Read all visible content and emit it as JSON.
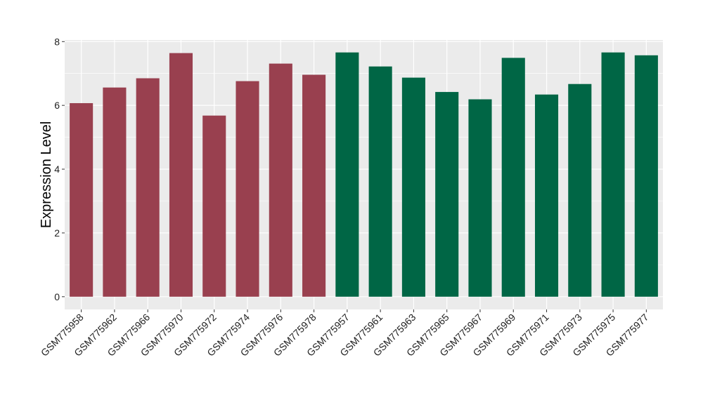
{
  "chart_data": {
    "type": "bar",
    "ylabel": "Expression Level",
    "xlabel": "",
    "ylim": [
      -0.4,
      8.05
    ],
    "yticks": [
      0,
      2,
      4,
      6,
      8
    ],
    "grid": true,
    "legend": "none",
    "panel_background": "#EBEBEB",
    "grid_color": "#FFFFFF",
    "categories": [
      "GSM775958",
      "GSM775962",
      "GSM775966",
      "GSM775970",
      "GSM775972",
      "GSM775974",
      "GSM775976",
      "GSM775978",
      "GSM775957",
      "GSM775961",
      "GSM775963",
      "GSM775965",
      "GSM775967",
      "GSM775969",
      "GSM775971",
      "GSM775973",
      "GSM775975",
      "GSM775977"
    ],
    "values": [
      6.07,
      6.56,
      6.85,
      7.64,
      5.68,
      6.76,
      7.31,
      6.96,
      7.66,
      7.22,
      6.87,
      6.42,
      6.19,
      7.49,
      6.34,
      6.67,
      7.66,
      7.57
    ],
    "colors": [
      "#99404F",
      "#99404F",
      "#99404F",
      "#99404F",
      "#99404F",
      "#99404F",
      "#99404F",
      "#99404F",
      "#006645",
      "#006645",
      "#006645",
      "#006645",
      "#006645",
      "#006645",
      "#006645",
      "#006645",
      "#006645",
      "#006645"
    ]
  }
}
